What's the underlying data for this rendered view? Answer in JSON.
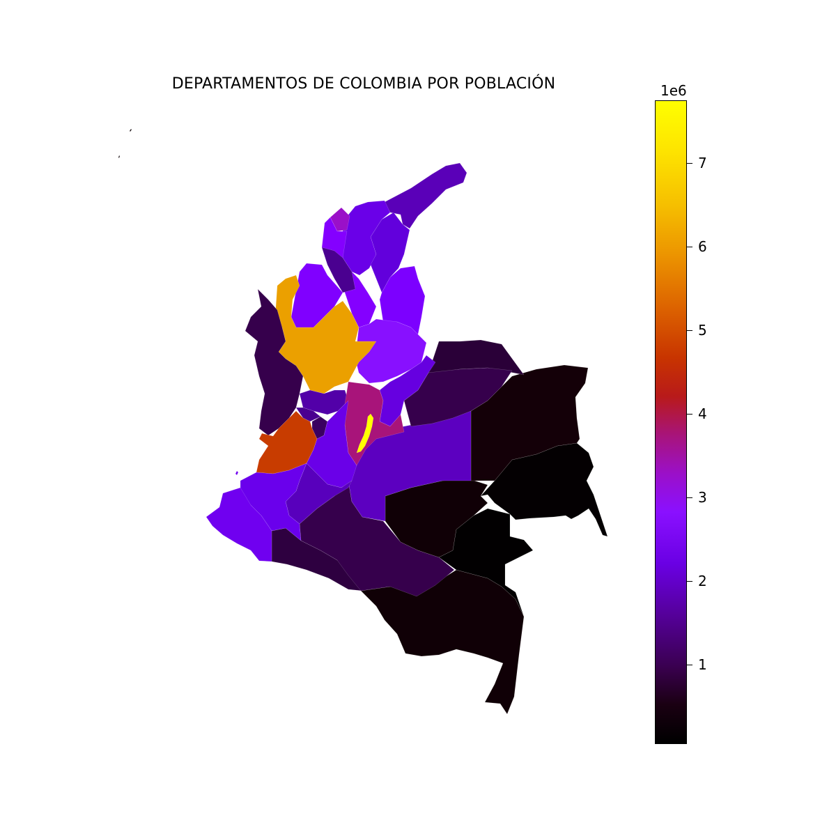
{
  "title": "DEPARTAMENTOS DE COLOMBIA POR POBLACIÓN",
  "colorbar": {
    "exponent_label": "1e6",
    "ticks": [
      "1",
      "2",
      "3",
      "4",
      "5",
      "6",
      "7"
    ],
    "tick_values": [
      1,
      2,
      3,
      4,
      5,
      6,
      7
    ],
    "range": [
      0.02,
      7.75
    ],
    "colormap": "gnuplot",
    "colors": {
      "low": "#000000",
      "mid_low": "#6a00e4",
      "mid": "#a8147a",
      "mid_high": "#dd6400",
      "high": "#ffff00"
    }
  },
  "map": {
    "region": "Colombia",
    "departments": [
      {
        "region": "la-guajira",
        "color": "#5a00b8"
      },
      {
        "region": "magdalena",
        "color": "#6a00e8"
      },
      {
        "region": "atlantico",
        "color": "#9a10c8"
      },
      {
        "region": "cesar",
        "color": "#6200dc"
      },
      {
        "region": "bolivar",
        "color": "#8400ff"
      },
      {
        "region": "sucre",
        "color": "#4a0090"
      },
      {
        "region": "cordoba",
        "color": "#8000ff"
      },
      {
        "region": "norte-de-santander",
        "color": "#7c00ff"
      },
      {
        "region": "santander",
        "color": "#8810ff"
      },
      {
        "region": "antioquia",
        "color": "#eba000"
      },
      {
        "region": "choco",
        "color": "#36004c"
      },
      {
        "region": "arauca",
        "color": "#2a0038"
      },
      {
        "region": "casanare",
        "color": "#36004c"
      },
      {
        "region": "boyaca",
        "color": "#6600e0"
      },
      {
        "region": "cundinamarca",
        "color": "#a8147a"
      },
      {
        "region": "bogota",
        "color": "#ffff00"
      },
      {
        "region": "caldas",
        "color": "#5200a8"
      },
      {
        "region": "risaralda",
        "color": "#4a0090"
      },
      {
        "region": "quindio",
        "color": "#3a0060"
      },
      {
        "region": "tolima",
        "color": "#6a00e8"
      },
      {
        "region": "valle-del-cauca",
        "color": "#c83c00"
      },
      {
        "region": "meta",
        "color": "#5c00c0"
      },
      {
        "region": "vichada",
        "color": "#140008"
      },
      {
        "region": "cauca",
        "color": "#6a00ec"
      },
      {
        "region": "huila",
        "color": "#5800bc"
      },
      {
        "region": "narino",
        "color": "#7000f0"
      },
      {
        "region": "putumayo",
        "color": "#2e0040"
      },
      {
        "region": "caqueta",
        "color": "#36004c"
      },
      {
        "region": "guaviare",
        "color": "#100006"
      },
      {
        "region": "guainia",
        "color": "#040002"
      },
      {
        "region": "vaupes",
        "color": "#020001"
      },
      {
        "region": "amazonas",
        "color": "#100006"
      },
      {
        "region": "san-andres",
        "color": "#0a0004"
      }
    ]
  }
}
